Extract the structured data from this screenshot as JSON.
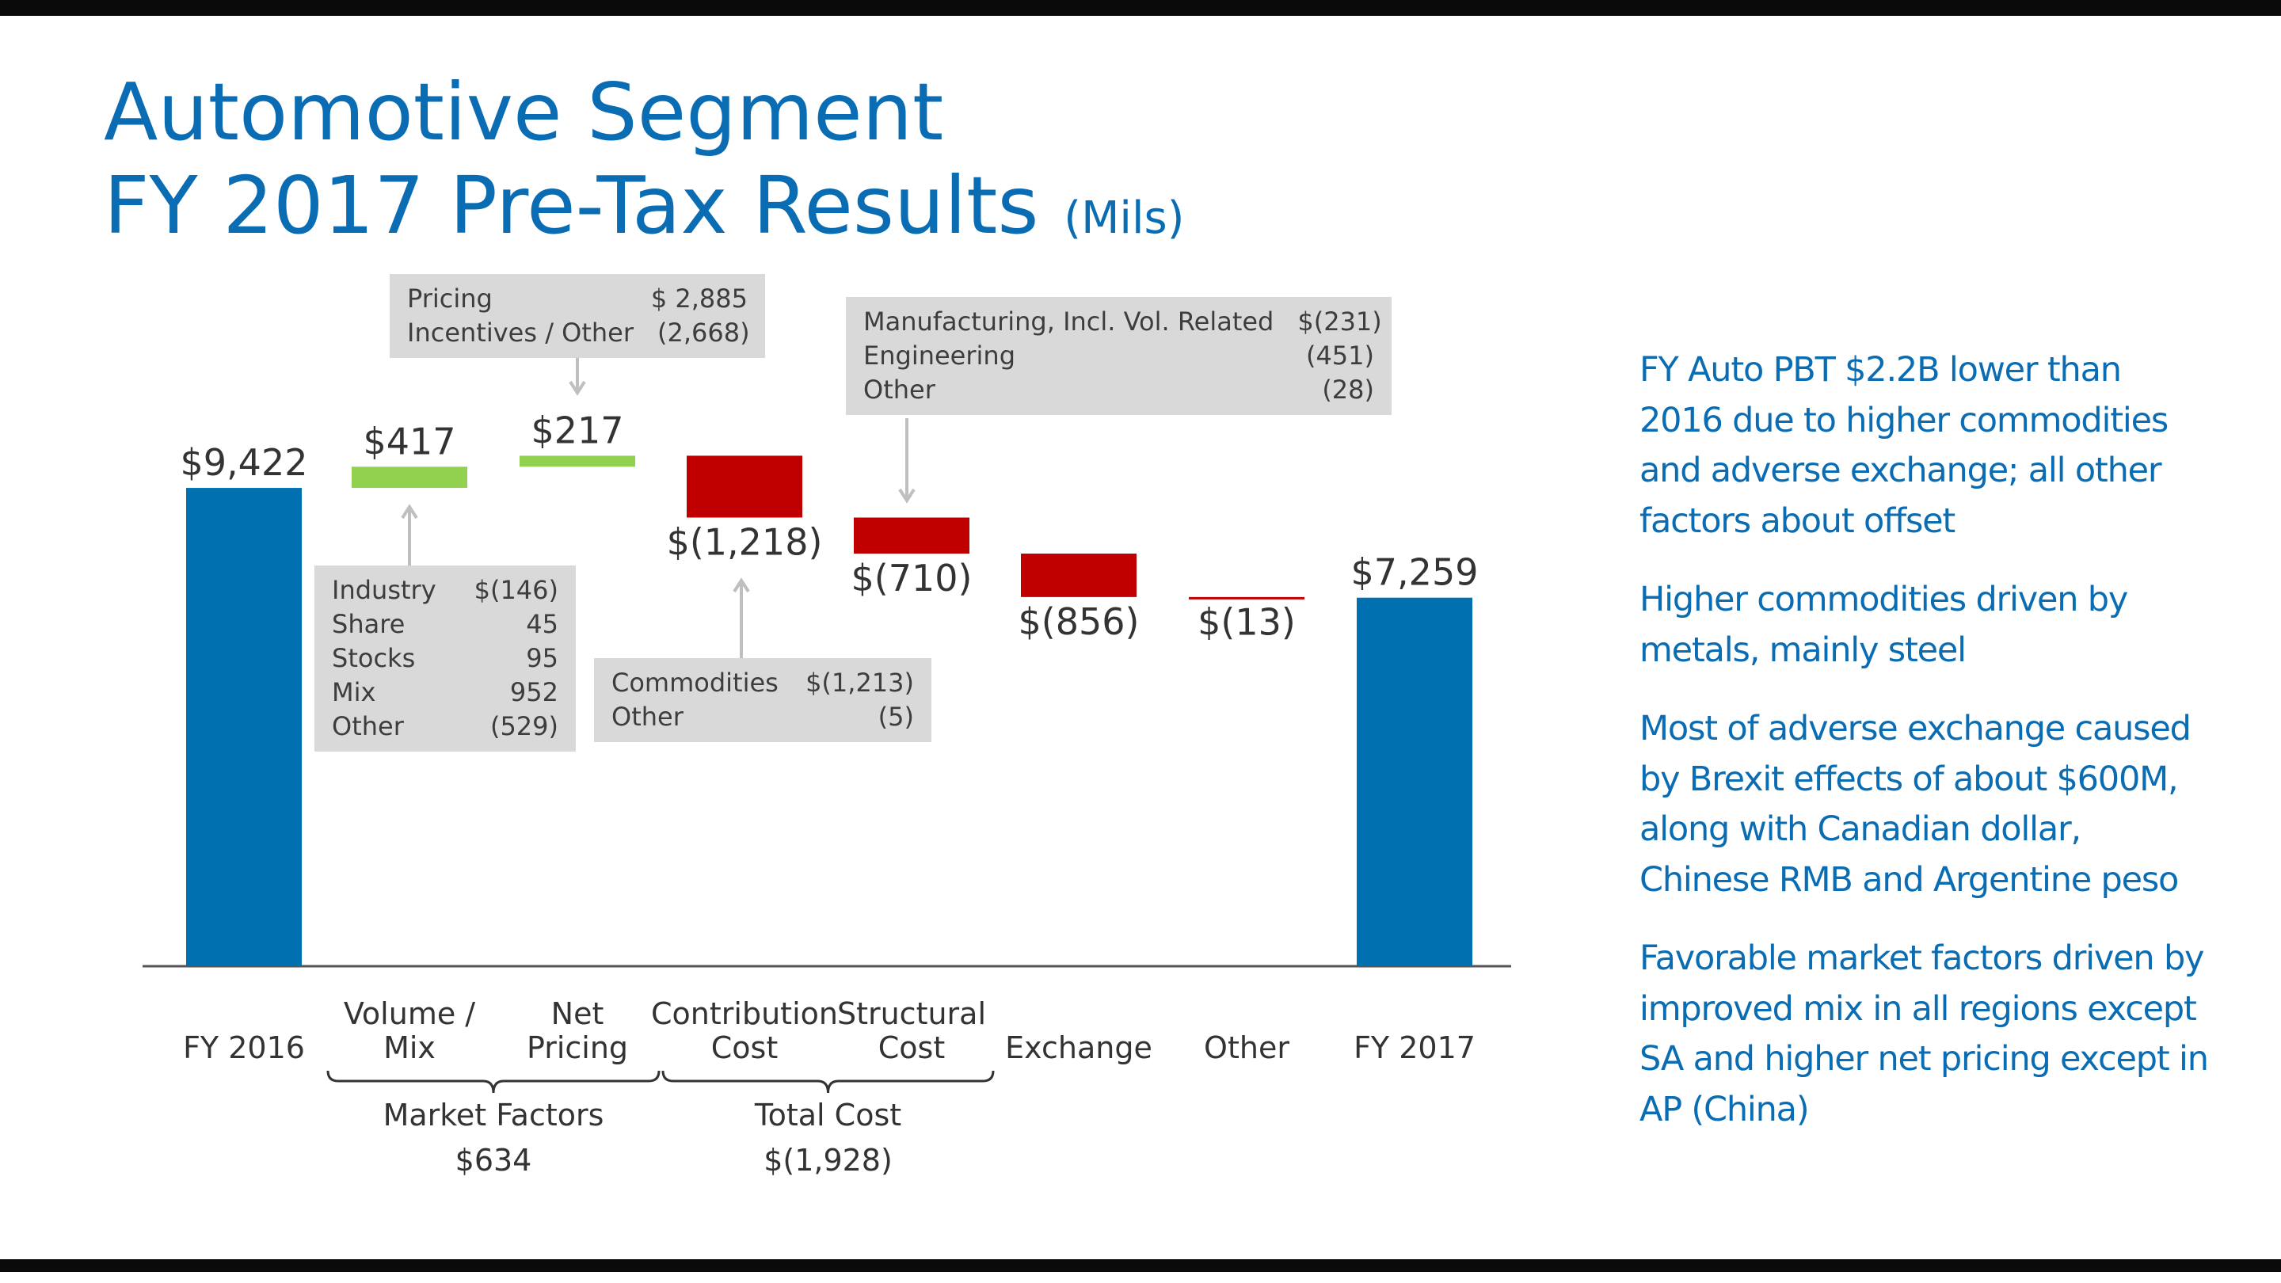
{
  "title": {
    "line1": "Automotive Segment",
    "line2": "FY 2017 Pre-Tax Results",
    "unit": "(Mils)"
  },
  "colors": {
    "title": "#0a6db3",
    "total_bar": "#0070b0",
    "positive_bar": "#92d050",
    "negative_bar": "#c00000",
    "callout_bg": "#d9d9d9",
    "text": "#333333"
  },
  "chart_data": {
    "type": "waterfall",
    "title": "FY 2017 Pre-Tax Results (Mils)",
    "categories": [
      "FY 2016",
      "Volume / Mix",
      "Net Pricing",
      "Contribution Cost",
      "Structural Cost",
      "Exchange",
      "Other",
      "FY 2017"
    ],
    "category_lines": [
      [
        "FY 2016"
      ],
      [
        "Volume /",
        "Mix"
      ],
      [
        "Net",
        "Pricing"
      ],
      [
        "Contribution",
        "Cost"
      ],
      [
        "Structural",
        "Cost"
      ],
      [
        "Exchange"
      ],
      [
        "Other"
      ],
      [
        "FY 2017"
      ]
    ],
    "values": [
      9422,
      417,
      217,
      -1218,
      -710,
      -856,
      -13,
      7259
    ],
    "kinds": [
      "total",
      "increase",
      "increase",
      "decrease",
      "decrease",
      "decrease",
      "decrease",
      "total"
    ],
    "value_labels": [
      "$9,422",
      "$417",
      "$217",
      "$(1,218)",
      "$(710)",
      "$(856)",
      "$(13)",
      "$7,259"
    ],
    "groups": [
      {
        "name": "Market Factors",
        "value_label": "$634",
        "from": 1,
        "to": 2
      },
      {
        "name": "Total Cost",
        "value_label": "$(1,928)",
        "from": 3,
        "to": 4
      }
    ],
    "y_baseline": 0
  },
  "callouts": {
    "pricing": {
      "rows": [
        {
          "label": "Pricing",
          "value": "$ 2,885"
        },
        {
          "label": "Incentives / Other",
          "value": "(2,668)"
        }
      ]
    },
    "volume": {
      "rows": [
        {
          "label": "Industry",
          "value": "$(146)"
        },
        {
          "label": "Share",
          "value": "45"
        },
        {
          "label": "Stocks",
          "value": "95"
        },
        {
          "label": "Mix",
          "value": "952"
        },
        {
          "label": "Other",
          "value": "(529)"
        }
      ]
    },
    "contribution": {
      "rows": [
        {
          "label": "Commodities",
          "value": "$(1,213)"
        },
        {
          "label": "Other",
          "value": "(5)"
        }
      ]
    },
    "structural": {
      "rows": [
        {
          "label": "Manufacturing, Incl. Vol. Related",
          "value": "$(231)"
        },
        {
          "label": "Engineering",
          "value": "(451)"
        },
        {
          "label": "Other",
          "value": "(28)"
        }
      ]
    }
  },
  "bullets": [
    "FY Auto PBT $2.2B lower than 2016 due to higher commodities and adverse exchange; all other factors about offset",
    "Higher commodities driven by metals, mainly steel",
    "Most of adverse exchange caused by Brexit effects of about $600M, along with Canadian dollar, Chinese RMB and Argentine peso",
    "Favorable market factors driven by improved mix in all regions except SA and higher net pricing except in AP (China)"
  ]
}
